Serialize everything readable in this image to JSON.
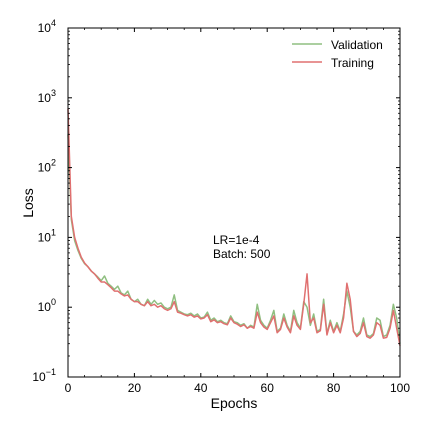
{
  "chart_data": {
    "type": "line",
    "xlabel": "Epochs",
    "ylabel": "Loss",
    "xlim": [
      0,
      100
    ],
    "ylim": [
      0.1,
      10000
    ],
    "yscale": "log",
    "grid": false,
    "legend_position": "top-right",
    "x_ticks": [
      "0",
      "20",
      "40",
      "60",
      "80",
      "100"
    ],
    "y_ticks": [
      {
        "base": "10",
        "exp": "−1"
      },
      {
        "base": "10",
        "exp": "0"
      },
      {
        "base": "10",
        "exp": "1"
      },
      {
        "base": "10",
        "exp": "2"
      },
      {
        "base": "10",
        "exp": "3"
      },
      {
        "base": "10",
        "exp": "4"
      }
    ],
    "annotation": [
      "LR=1e-4",
      "Batch: 500"
    ],
    "series": [
      {
        "name": "Validation",
        "color": "#8fbf80",
        "x": [
          0,
          1,
          2,
          3,
          4,
          5,
          6,
          7,
          8,
          9,
          10,
          11,
          12,
          13,
          14,
          15,
          16,
          17,
          18,
          19,
          20,
          21,
          22,
          23,
          24,
          25,
          26,
          27,
          28,
          29,
          30,
          31,
          32,
          33,
          34,
          35,
          36,
          37,
          38,
          39,
          40,
          41,
          42,
          43,
          44,
          45,
          46,
          47,
          48,
          49,
          50,
          51,
          52,
          53,
          54,
          55,
          56,
          57,
          58,
          59,
          60,
          61,
          62,
          63,
          64,
          65,
          66,
          67,
          68,
          69,
          70,
          71,
          72,
          73,
          74,
          75,
          76,
          77,
          78,
          79,
          80,
          81,
          82,
          83,
          84,
          85,
          86,
          87,
          88,
          89,
          90,
          91,
          92,
          93,
          94,
          95,
          96,
          97,
          98,
          99,
          100
        ],
        "y": [
          300,
          18,
          9,
          6.5,
          5,
          4.2,
          3.8,
          3.3,
          3.0,
          2.7,
          2.4,
          2.8,
          2.2,
          2.0,
          1.8,
          2.0,
          1.6,
          1.5,
          1.7,
          1.3,
          1.2,
          1.3,
          1.1,
          1.05,
          1.3,
          1.1,
          1.25,
          1.1,
          1.15,
          1.0,
          0.95,
          1.0,
          1.5,
          0.9,
          0.85,
          0.8,
          0.78,
          0.82,
          0.75,
          0.8,
          0.7,
          0.72,
          0.85,
          0.65,
          0.7,
          0.62,
          0.65,
          0.6,
          0.58,
          0.75,
          0.62,
          0.6,
          0.55,
          0.58,
          0.5,
          0.55,
          0.52,
          1.1,
          0.65,
          0.55,
          0.5,
          0.65,
          0.9,
          0.45,
          0.5,
          0.8,
          0.55,
          0.45,
          0.9,
          0.6,
          0.5,
          1.2,
          1.0,
          0.55,
          0.8,
          0.45,
          0.48,
          1.3,
          0.42,
          0.65,
          0.45,
          0.6,
          0.45,
          0.8,
          1.7,
          1.0,
          0.45,
          0.4,
          0.45,
          0.7,
          0.4,
          0.38,
          0.42,
          0.7,
          0.65,
          0.38,
          0.4,
          0.55,
          1.1,
          0.7,
          0.3
        ]
      },
      {
        "name": "Training",
        "color": "#e07070",
        "x": [
          0,
          1,
          2,
          3,
          4,
          5,
          6,
          7,
          8,
          9,
          10,
          11,
          12,
          13,
          14,
          15,
          16,
          17,
          18,
          19,
          20,
          21,
          22,
          23,
          24,
          25,
          26,
          27,
          28,
          29,
          30,
          31,
          32,
          33,
          34,
          35,
          36,
          37,
          38,
          39,
          40,
          41,
          42,
          43,
          44,
          45,
          46,
          47,
          48,
          49,
          50,
          51,
          52,
          53,
          54,
          55,
          56,
          57,
          58,
          59,
          60,
          61,
          62,
          63,
          64,
          65,
          66,
          67,
          68,
          69,
          70,
          71,
          72,
          73,
          74,
          75,
          76,
          77,
          78,
          79,
          80,
          81,
          82,
          83,
          84,
          85,
          86,
          87,
          88,
          89,
          90,
          91,
          92,
          93,
          94,
          95,
          96,
          97,
          98,
          99,
          100
        ],
        "y": [
          700,
          20,
          10,
          7,
          5.2,
          4.3,
          3.8,
          3.3,
          3.0,
          2.6,
          2.3,
          2.3,
          2.1,
          1.9,
          1.7,
          1.7,
          1.55,
          1.45,
          1.5,
          1.3,
          1.2,
          1.2,
          1.1,
          1.05,
          1.2,
          1.05,
          1.1,
          1.0,
          1.05,
          0.95,
          0.9,
          0.95,
          1.2,
          0.85,
          0.82,
          0.78,
          0.75,
          0.78,
          0.72,
          0.75,
          0.68,
          0.7,
          0.78,
          0.62,
          0.66,
          0.6,
          0.62,
          0.58,
          0.56,
          0.7,
          0.6,
          0.57,
          0.53,
          0.56,
          0.5,
          0.53,
          0.5,
          0.85,
          0.6,
          0.52,
          0.48,
          0.6,
          0.75,
          0.43,
          0.48,
          0.7,
          0.52,
          0.43,
          0.75,
          0.55,
          0.48,
          1.1,
          3.0,
          0.6,
          0.7,
          0.43,
          0.46,
          1.1,
          0.4,
          0.6,
          0.43,
          0.55,
          0.43,
          0.7,
          2.2,
          1.3,
          0.45,
          0.38,
          0.42,
          0.6,
          0.38,
          0.36,
          0.4,
          0.6,
          0.55,
          0.36,
          0.37,
          0.5,
          0.9,
          0.5,
          0.28
        ]
      }
    ]
  }
}
